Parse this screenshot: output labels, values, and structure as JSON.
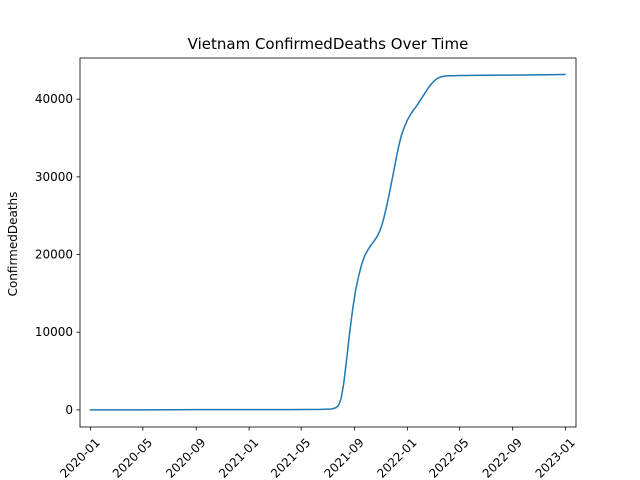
{
  "chart_data": {
    "type": "line",
    "title": "Vietnam  ConfirmedDeaths Over Time",
    "xlabel": "",
    "ylabel": "ConfirmedDeaths",
    "x_ticks": [
      "2020-01",
      "2020-05",
      "2020-09",
      "2021-01",
      "2021-05",
      "2021-09",
      "2022-01",
      "2022-05",
      "2022-09",
      "2023-01"
    ],
    "y_ticks": [
      0,
      10000,
      20000,
      30000,
      40000
    ],
    "xlim": [
      "2019-12-08",
      "2023-01-25"
    ],
    "ylim": [
      -2200,
      45300
    ],
    "grid": false,
    "colors": {
      "line": "#1f77b4"
    },
    "series": [
      {
        "x": [
          "2020-01-01",
          "2020-04-01",
          "2020-07-01",
          "2020-09-01",
          "2021-01-01",
          "2021-04-01",
          "2021-06-15",
          "2021-07-10",
          "2021-07-20",
          "2021-07-25",
          "2021-07-28",
          "2021-08-01",
          "2021-08-07",
          "2021-08-14",
          "2021-08-21",
          "2021-08-28",
          "2021-09-04",
          "2021-09-11",
          "2021-09-18",
          "2021-09-25",
          "2021-10-02",
          "2021-10-09",
          "2021-10-16",
          "2021-10-23",
          "2021-10-30",
          "2021-11-06",
          "2021-11-13",
          "2021-11-20",
          "2021-11-27",
          "2021-12-04",
          "2021-12-11",
          "2021-12-18",
          "2021-12-25",
          "2022-01-01",
          "2022-01-08",
          "2022-01-15",
          "2022-01-22",
          "2022-01-29",
          "2022-02-05",
          "2022-02-12",
          "2022-02-19",
          "2022-02-26",
          "2022-03-05",
          "2022-03-12",
          "2022-03-19",
          "2022-03-26",
          "2022-04-02",
          "2022-04-09",
          "2022-04-16",
          "2022-04-23",
          "2022-05-01",
          "2022-05-15",
          "2022-06-01",
          "2022-08-01",
          "2022-10-01",
          "2022-12-31"
        ],
        "y": [
          0,
          0,
          20,
          35,
          35,
          40,
          70,
          120,
          280,
          500,
          800,
          1400,
          3300,
          6500,
          10000,
          13000,
          15500,
          17300,
          18800,
          19900,
          20600,
          21200,
          21700,
          22300,
          23100,
          24300,
          25900,
          27700,
          29700,
          31700,
          33700,
          35300,
          36400,
          37300,
          38000,
          38600,
          39100,
          39700,
          40300,
          40900,
          41500,
          42000,
          42400,
          42700,
          42850,
          42950,
          43000,
          43010,
          43020,
          43030,
          43040,
          43050,
          43060,
          43090,
          43120,
          43180
        ]
      }
    ]
  }
}
